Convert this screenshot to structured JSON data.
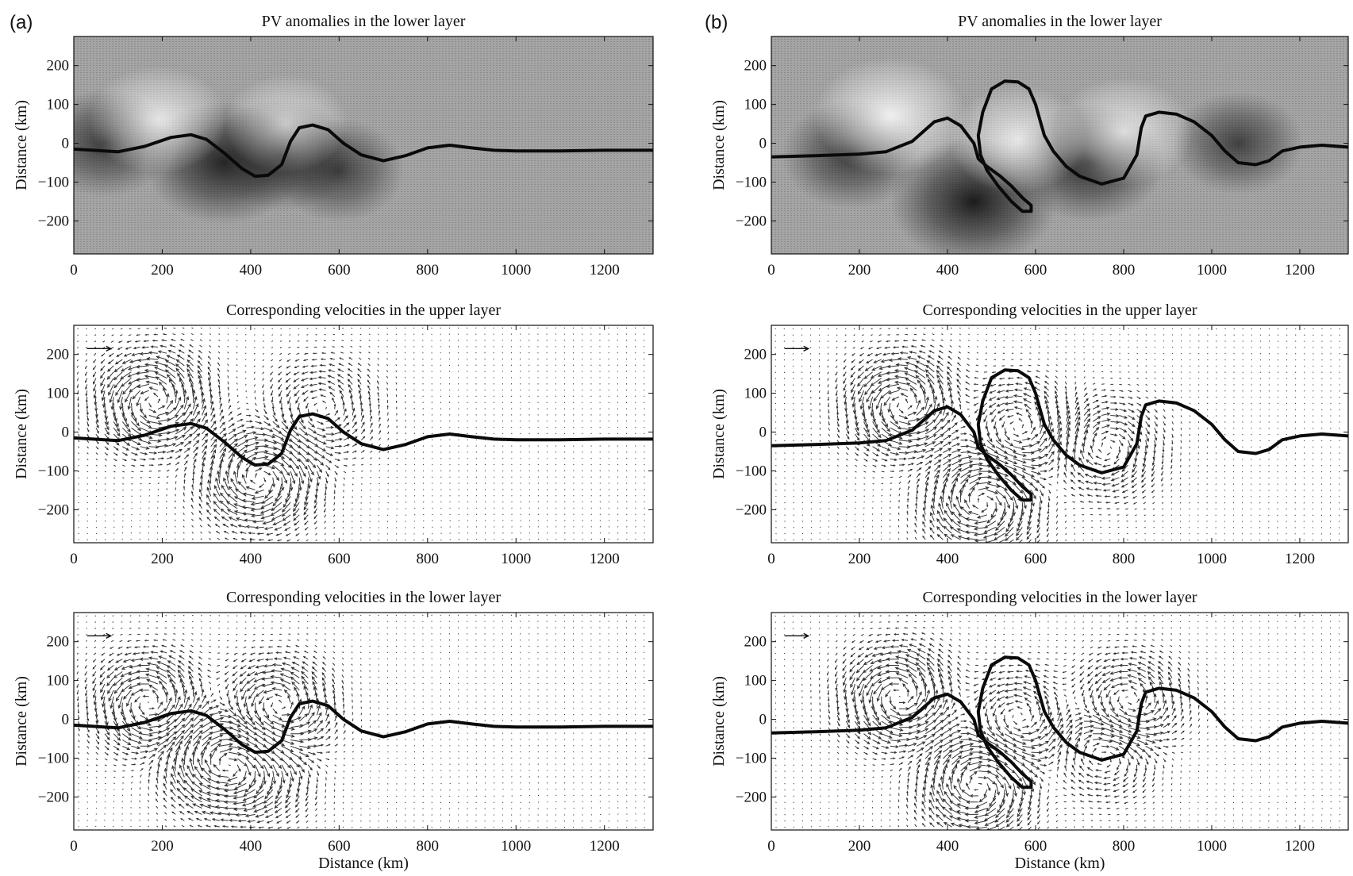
{
  "figure": {
    "panel_labels": [
      "(a)",
      "(b)"
    ]
  },
  "chart_data": [
    {
      "type": "heatmap",
      "panel": "(a)",
      "title": "PV anomalies in the lower layer",
      "xlabel": "",
      "ylabel": "Distance (km)",
      "xlim": [
        0,
        1310
      ],
      "ylim": [
        -285,
        275
      ],
      "xticks": [
        0,
        200,
        400,
        600,
        800,
        1000,
        1200
      ],
      "yticks": [
        200,
        100,
        0,
        -100,
        -200
      ],
      "front": {
        "x": [
          0,
          100,
          160,
          220,
          265,
          300,
          340,
          380,
          410,
          440,
          470,
          490,
          510,
          540,
          575,
          610,
          650,
          700,
          750,
          800,
          850,
          900,
          950,
          1000,
          1100,
          1200,
          1310
        ],
        "y": [
          -15,
          -22,
          -8,
          15,
          22,
          10,
          -25,
          -65,
          -85,
          -82,
          -55,
          5,
          40,
          47,
          35,
          0,
          -30,
          -45,
          -32,
          -12,
          -5,
          -12,
          -18,
          -20,
          -20,
          -18,
          -18
        ]
      },
      "anomalies": [
        {
          "x": 70,
          "y": 0,
          "sign": "negative",
          "strength": 0.6
        },
        {
          "x": 340,
          "y": -50,
          "sign": "negative",
          "strength": 0.9
        },
        {
          "x": 470,
          "y": -30,
          "sign": "negative",
          "strength": 0.7
        },
        {
          "x": 600,
          "y": -70,
          "sign": "negative",
          "strength": 0.5
        },
        {
          "x": 190,
          "y": 60,
          "sign": "positive",
          "strength": 0.6
        },
        {
          "x": 480,
          "y": 50,
          "sign": "positive",
          "strength": 0.4
        }
      ]
    },
    {
      "type": "quiver",
      "panel": "(a)",
      "title": "Corresponding velocities in the upper layer",
      "xlabel": "",
      "ylabel": "Distance (km)",
      "xlim": [
        0,
        1310
      ],
      "ylim": [
        -285,
        275
      ],
      "xticks": [
        0,
        200,
        400,
        600,
        800,
        1000,
        1200
      ],
      "yticks": [
        200,
        100,
        0,
        -100,
        -200
      ],
      "reference_arrow": {
        "x": 30,
        "y": 215
      },
      "vortices": [
        {
          "x": 180,
          "y": 80,
          "sign": "ccw",
          "strength": 1.0
        },
        {
          "x": 420,
          "y": -120,
          "sign": "cw",
          "strength": 1.0
        },
        {
          "x": 560,
          "y": 60,
          "sign": "ccw",
          "strength": 0.5
        }
      ]
    },
    {
      "type": "quiver",
      "panel": "(a)",
      "title": "Corresponding velocities in the lower layer",
      "xlabel": "Distance (km)",
      "ylabel": "Distance (km)",
      "xlim": [
        0,
        1310
      ],
      "ylim": [
        -285,
        275
      ],
      "xticks": [
        0,
        200,
        400,
        600,
        800,
        1000,
        1200
      ],
      "yticks": [
        200,
        100,
        0,
        -100,
        -200
      ],
      "reference_arrow": {
        "x": 30,
        "y": 215
      },
      "vortices": [
        {
          "x": 170,
          "y": 40,
          "sign": "ccw",
          "strength": 0.9
        },
        {
          "x": 330,
          "y": -110,
          "sign": "cw",
          "strength": 1.0
        },
        {
          "x": 460,
          "y": 30,
          "sign": "ccw",
          "strength": 0.8
        },
        {
          "x": 420,
          "y": -140,
          "sign": "cw",
          "strength": 0.5
        }
      ]
    },
    {
      "type": "heatmap",
      "panel": "(b)",
      "title": "PV anomalies in the lower layer",
      "xlabel": "",
      "ylabel": "Distance (km)",
      "xlim": [
        0,
        1310
      ],
      "ylim": [
        -285,
        275
      ],
      "xticks": [
        0,
        200,
        400,
        600,
        800,
        1000,
        1200
      ],
      "yticks": [
        200,
        100,
        0,
        -100,
        -200
      ],
      "front": {
        "x": [
          0,
          100,
          200,
          260,
          320,
          370,
          400,
          430,
          460,
          470,
          490,
          520,
          545,
          570,
          590,
          590,
          570,
          545,
          515,
          490,
          475,
          470,
          480,
          500,
          530,
          560,
          585,
          600,
          610,
          620,
          640,
          670,
          700,
          750,
          800,
          830,
          840,
          850,
          880,
          920,
          960,
          1000,
          1030,
          1060,
          1100,
          1130,
          1160,
          1200,
          1250,
          1310
        ],
        "y": [
          -35,
          -32,
          -28,
          -22,
          5,
          55,
          65,
          45,
          0,
          -40,
          -60,
          -85,
          -110,
          -140,
          -160,
          -175,
          -175,
          -150,
          -110,
          -70,
          -30,
          20,
          80,
          140,
          160,
          158,
          140,
          100,
          60,
          20,
          -20,
          -60,
          -85,
          -105,
          -90,
          -30,
          40,
          70,
          80,
          75,
          55,
          20,
          -20,
          -50,
          -55,
          -45,
          -20,
          -10,
          -5,
          -10
        ]
      },
      "anomalies": [
        {
          "x": 180,
          "y": -30,
          "sign": "negative",
          "strength": 0.6
        },
        {
          "x": 460,
          "y": -150,
          "sign": "negative",
          "strength": 1.0
        },
        {
          "x": 720,
          "y": -50,
          "sign": "negative",
          "strength": 0.8
        },
        {
          "x": 1060,
          "y": 0,
          "sign": "negative",
          "strength": 0.5
        },
        {
          "x": 270,
          "y": 70,
          "sign": "positive",
          "strength": 0.8
        },
        {
          "x": 560,
          "y": 10,
          "sign": "positive",
          "strength": 0.6
        },
        {
          "x": 800,
          "y": 30,
          "sign": "positive",
          "strength": 0.6
        }
      ]
    },
    {
      "type": "quiver",
      "panel": "(b)",
      "title": "Corresponding velocities in the upper layer",
      "xlabel": "",
      "ylabel": "Distance (km)",
      "xlim": [
        0,
        1310
      ],
      "ylim": [
        -285,
        275
      ],
      "xticks": [
        0,
        200,
        400,
        600,
        800,
        1000,
        1200
      ],
      "yticks": [
        200,
        100,
        0,
        -100,
        -200
      ],
      "reference_arrow": {
        "x": 30,
        "y": 215
      },
      "vortices": [
        {
          "x": 300,
          "y": 70,
          "sign": "ccw",
          "strength": 1.0
        },
        {
          "x": 480,
          "y": -180,
          "sign": "cw",
          "strength": 1.0
        },
        {
          "x": 760,
          "y": -40,
          "sign": "cw",
          "strength": 0.6
        },
        {
          "x": 560,
          "y": 10,
          "sign": "ccw",
          "strength": 0.6
        }
      ]
    },
    {
      "type": "quiver",
      "panel": "(b)",
      "title": "Corresponding velocities in the lower layer",
      "xlabel": "Distance (km)",
      "ylabel": "Distance (km)",
      "xlim": [
        0,
        1310
      ],
      "ylim": [
        -285,
        275
      ],
      "xticks": [
        0,
        200,
        400,
        600,
        800,
        1000,
        1200
      ],
      "yticks": [
        200,
        100,
        0,
        -100,
        -200
      ],
      "reference_arrow": {
        "x": 30,
        "y": 215
      },
      "vortices": [
        {
          "x": 290,
          "y": 60,
          "sign": "ccw",
          "strength": 1.0
        },
        {
          "x": 470,
          "y": -170,
          "sign": "cw",
          "strength": 1.0
        },
        {
          "x": 560,
          "y": 0,
          "sign": "ccw",
          "strength": 0.6
        },
        {
          "x": 810,
          "y": 40,
          "sign": "ccw",
          "strength": 0.7
        },
        {
          "x": 760,
          "y": -80,
          "sign": "cw",
          "strength": 0.5
        }
      ]
    }
  ]
}
